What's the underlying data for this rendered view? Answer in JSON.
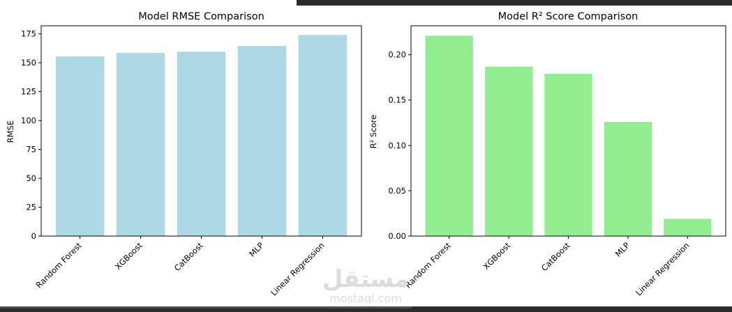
{
  "chart_data": [
    {
      "type": "bar",
      "title": "Model RMSE Comparison",
      "xlabel": "",
      "ylabel": "RMSE",
      "categories": [
        "Random Forest",
        "XGBoost",
        "CatBoost",
        "MLP",
        "Linear Regression"
      ],
      "values": [
        155.5,
        158.5,
        159.5,
        164.5,
        174.0
      ],
      "ylim": [
        0,
        182
      ],
      "yticks": [
        "0",
        "25",
        "50",
        "75",
        "100",
        "125",
        "150",
        "175"
      ],
      "color": "#add8e6",
      "grid": false
    },
    {
      "type": "bar",
      "title": "Model R² Score Comparison",
      "xlabel": "",
      "ylabel": "R² Score",
      "categories": [
        "Random Forest",
        "XGBoost",
        "CatBoost",
        "MLP",
        "Linear Regression"
      ],
      "values": [
        0.221,
        0.187,
        0.179,
        0.126,
        0.019
      ],
      "ylim": [
        0,
        0.232
      ],
      "yticks": [
        "0.00",
        "0.05",
        "0.10",
        "0.15",
        "0.20"
      ],
      "color": "#90ee90",
      "grid": false
    }
  ],
  "watermark": {
    "logo_text": "مستقل",
    "site_text": "mostaql.com"
  }
}
